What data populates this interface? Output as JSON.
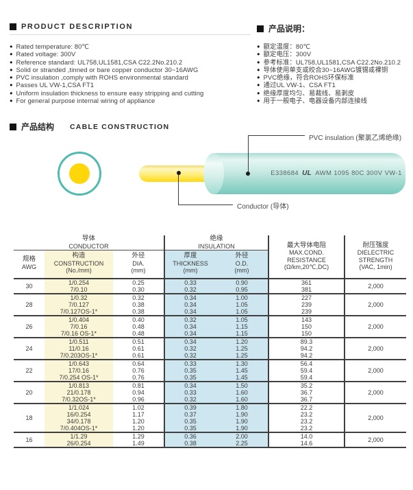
{
  "colors": {
    "insulation_teal": "#4ebbae",
    "conductor_yellow": "#ffd60a",
    "construction_col_bg": "#faf5d6",
    "insulation_col_bg": "#cde6ef"
  },
  "product_description": {
    "title": "PRODUCT DESCRIPTION",
    "items": [
      "Rated temperature: 80℃",
      "Rated voltage: 300V",
      "Reference standard: UL758,UL1581,CSA C22.2No.210.2",
      "Solid or stranded ,tinned or bare copper conductor 30~16AWG",
      "PVC insulation ,comply with ROHS environmental standard",
      "Passes UL VW-1,CSA FT1",
      "Uniform insulation thickness to ensure easy stripping and cutting",
      "For general purpose internal wiring of appliance"
    ]
  },
  "product_description_cn": {
    "title": "产品说明：",
    "items": [
      "额定温度：80℃",
      "额定电压：300V",
      "参考标准：UL758,UL1581,CSA C22.2No.210.2",
      "导体使用单支或绞合30~16AWG镀锡或裸铜",
      "PVC绝缘，符合ROHS环保标准",
      "通过UL VW-1、CSA FT1",
      "绝缘厚度均匀、易裁线、易剥皮",
      "用于一般电子、电器设备内部连接线"
    ]
  },
  "cable_construction": {
    "title_cn": "产品结构",
    "title_en": "CABLE CONSTRUCTION",
    "insulation_label": "PVC insulation (聚氯乙烯绝缘)",
    "conductor_label": "Conductor (导体)",
    "print_cert_no": "E338684",
    "print_ul_mark": "UL",
    "print_text": "AWM 1095 80C 300V VW-1"
  },
  "spec_table": {
    "group_headers": {
      "conductor_cn": "导体",
      "conductor_en": "CONDUCTOR",
      "insulation_cn": "绝缘",
      "insulation_en": "INSULATION"
    },
    "columns": {
      "awg_cn": "规格",
      "awg_en": "AWG",
      "construction_cn": "构造",
      "construction_en": "CONSTRUCTION",
      "construction_unit": "(No./mm)",
      "dia_cn": "外径",
      "dia_en": "DIA.",
      "dia_unit": "(mm)",
      "thickness_cn": "厚度",
      "thickness_en": "THICKNESS",
      "thickness_unit": "(mm)",
      "od_cn": "外径",
      "od_en": "O.D.",
      "od_unit": "(mm)",
      "resistance_cn": "最大导体电阻",
      "resistance_en1": "MAX.COND.",
      "resistance_en2": "RESISTANCE",
      "resistance_unit": "(Ω/km,20℃,DC)",
      "dielectric_cn": "耐压强度",
      "dielectric_en1": "DIELECTRIC",
      "dielectric_en2": "STRENGTH",
      "dielectric_unit": "(VAC, 1min)"
    },
    "rows": [
      {
        "awg": "30",
        "construction": [
          "1/0.254",
          "7/0.10"
        ],
        "dia": [
          "0.25",
          "0.30"
        ],
        "thickness": [
          "0.33",
          "0.32"
        ],
        "od": [
          "0.90",
          "0.95"
        ],
        "resistance": [
          "361",
          "381"
        ],
        "dielectric": "2,000"
      },
      {
        "awg": "28",
        "construction": [
          "1/0.32",
          "7/0.127",
          "7/0.127OS-1*"
        ],
        "dia": [
          "0.32",
          "0.38",
          "0.38"
        ],
        "thickness": [
          "0.34",
          "0.34",
          "0.34"
        ],
        "od": [
          "1.00",
          "1.05",
          "1.05"
        ],
        "resistance": [
          "227",
          "239",
          "239"
        ],
        "dielectric": "2,000"
      },
      {
        "awg": "26",
        "construction": [
          "1/0.404",
          "7/0.16",
          "7/0.16 OS-1*"
        ],
        "dia": [
          "0.40",
          "0.48",
          "0.48"
        ],
        "thickness": [
          "0.32",
          "0.34",
          "0.34"
        ],
        "od": [
          "1.05",
          "1.15",
          "1.15"
        ],
        "resistance": [
          "143",
          "150",
          "150"
        ],
        "dielectric": "2,000"
      },
      {
        "awg": "24",
        "construction": [
          "1/0.511",
          "11/0.16",
          "7/0.203OS-1*"
        ],
        "dia": [
          "0.51",
          "0.61",
          "0.61"
        ],
        "thickness": [
          "0.34",
          "0.32",
          "0.32"
        ],
        "od": [
          "1.20",
          "1.25",
          "1.25"
        ],
        "resistance": [
          "89.3",
          "94.2",
          "94.2"
        ],
        "dielectric": "2,000"
      },
      {
        "awg": "22",
        "construction": [
          "1/0.643",
          "17/0.16",
          "7/0.254 OS-1*"
        ],
        "dia": [
          "0.64",
          "0.76",
          "0.76"
        ],
        "thickness": [
          "0.33",
          "0.35",
          "0.35"
        ],
        "od": [
          "1.30",
          "1.45",
          "1.45"
        ],
        "resistance": [
          "56.4",
          "59.4",
          "59.4"
        ],
        "dielectric": "2,000"
      },
      {
        "awg": "20",
        "construction": [
          "1/0.813",
          "21/0.178",
          "7/0.32OS-1*"
        ],
        "dia": [
          "0.81",
          "0.94",
          "0.96"
        ],
        "thickness": [
          "0.34",
          "0.33",
          "0.32"
        ],
        "od": [
          "1.50",
          "1.60",
          "1.60"
        ],
        "resistance": [
          "35.2",
          "36.7",
          "36.7"
        ],
        "dielectric": "2,000"
      },
      {
        "awg": "18",
        "construction": [
          "1/1.024",
          "16/0.254",
          "34/0.178",
          "7/0.404OS-1*"
        ],
        "dia": [
          "1.02",
          "1.17",
          "1.20",
          "1.20"
        ],
        "thickness": [
          "0.39",
          "0.37",
          "0.35",
          "0.35"
        ],
        "od": [
          "1.80",
          "1.90",
          "1.90",
          "1.90"
        ],
        "resistance": [
          "22.2",
          "23.2",
          "23.2",
          "23.2"
        ],
        "dielectric": "2,000"
      },
      {
        "awg": "16",
        "construction": [
          "1/1.29",
          "26/0.254"
        ],
        "dia": [
          "1.29",
          "1.49"
        ],
        "thickness": [
          "0.36",
          "0.38"
        ],
        "od": [
          "2.00",
          "2.25"
        ],
        "resistance": [
          "14.0",
          "14.6"
        ],
        "dielectric": "2,000"
      }
    ]
  }
}
